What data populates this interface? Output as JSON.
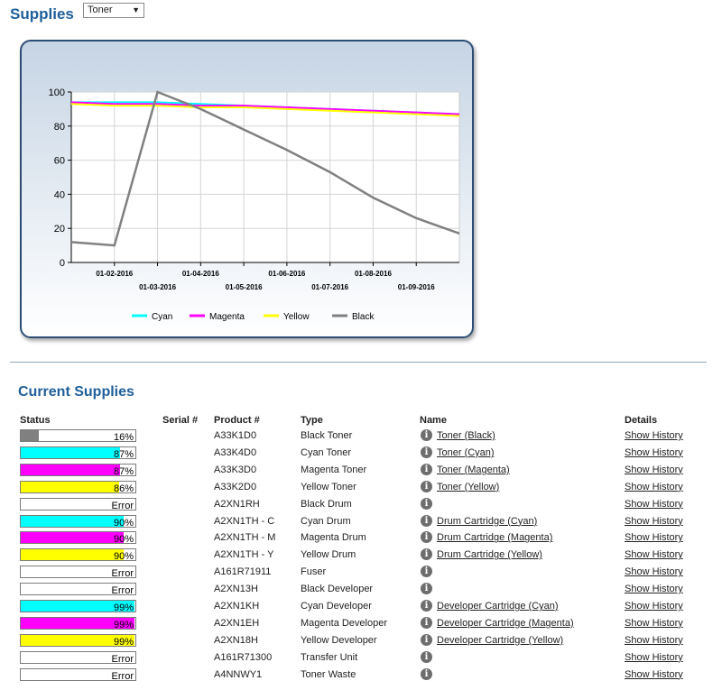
{
  "header": {
    "title": "Supplies",
    "select_value": "Toner"
  },
  "chart_data": {
    "type": "line",
    "ylim": [
      0,
      100
    ],
    "yticks": [
      0,
      20,
      40,
      60,
      80,
      100
    ],
    "x_tick_labels_row1": [
      "01-02-2016",
      "01-04-2016",
      "01-06-2016",
      "01-08-2016"
    ],
    "x_tick_labels_row2": [
      "01-03-2016",
      "01-05-2016",
      "01-07-2016",
      "01-09-2016"
    ],
    "x": [
      "01-01-2016",
      "01-02-2016",
      "01-03-2016",
      "01-04-2016",
      "01-05-2016",
      "01-06-2016",
      "01-07-2016",
      "01-08-2016",
      "01-09-2016",
      "01-10-2016"
    ],
    "series": [
      {
        "name": "Cyan",
        "color": "#00ffff",
        "values": [
          94,
          94,
          94,
          93,
          92,
          91,
          90,
          89,
          88,
          87
        ]
      },
      {
        "name": "Magenta",
        "color": "#ff00ff",
        "values": [
          94,
          93,
          93,
          92,
          92,
          91,
          90,
          89,
          88,
          87
        ]
      },
      {
        "name": "Yellow",
        "color": "#ffff00",
        "values": [
          93,
          92,
          92,
          91,
          91,
          90,
          89,
          88,
          87,
          86
        ]
      },
      {
        "name": "Black",
        "color": "#808080",
        "values": [
          12,
          10,
          100,
          90,
          78,
          66,
          53,
          38,
          26,
          17
        ]
      }
    ],
    "legend": "bottom"
  },
  "current": {
    "title": "Current Supplies",
    "headers": {
      "status": "Status",
      "serial": "Serial #",
      "product": "Product #",
      "type": "Type",
      "name": "Name",
      "details": "Details"
    },
    "rows": [
      {
        "percent": 16,
        "label": "16%",
        "color": "#808080",
        "product": "A33K1D0",
        "type": "Black Toner",
        "name": "Toner (Black)",
        "details": "Show History"
      },
      {
        "percent": 87,
        "label": "87%",
        "color": "#00ffff",
        "product": "A33K4D0",
        "type": "Cyan Toner",
        "name": "Toner (Cyan)",
        "details": "Show History"
      },
      {
        "percent": 87,
        "label": "87%",
        "color": "#ff00ff",
        "product": "A33K3D0",
        "type": "Magenta Toner",
        "name": "Toner (Magenta)",
        "details": "Show History"
      },
      {
        "percent": 86,
        "label": "86%",
        "color": "#ffff00",
        "product": "A33K2D0",
        "type": "Yellow Toner",
        "name": "Toner (Yellow)",
        "details": "Show History"
      },
      {
        "percent": 0,
        "label": "Error",
        "color": "#ffffff",
        "product": "A2XN1RH",
        "type": "Black Drum",
        "name": "",
        "details": "Show History"
      },
      {
        "percent": 90,
        "label": "90%",
        "color": "#00ffff",
        "product": "A2XN1TH - C",
        "type": "Cyan Drum",
        "name": "Drum Cartridge (Cyan)",
        "details": "Show History"
      },
      {
        "percent": 90,
        "label": "90%",
        "color": "#ff00ff",
        "product": "A2XN1TH - M",
        "type": "Magenta Drum",
        "name": "Drum Cartridge (Magenta)",
        "details": "Show History"
      },
      {
        "percent": 90,
        "label": "90%",
        "color": "#ffff00",
        "product": "A2XN1TH - Y",
        "type": "Yellow Drum",
        "name": "Drum Cartridge (Yellow)",
        "details": "Show History"
      },
      {
        "percent": 0,
        "label": "Error",
        "color": "#ffffff",
        "product": "A161R71911",
        "type": "Fuser",
        "name": "",
        "details": "Show History"
      },
      {
        "percent": 0,
        "label": "Error",
        "color": "#ffffff",
        "product": "A2XN13H",
        "type": "Black Developer",
        "name": "",
        "details": "Show History"
      },
      {
        "percent": 99,
        "label": "99%",
        "color": "#00ffff",
        "product": "A2XN1KH",
        "type": "Cyan Developer",
        "name": "Developer Cartridge (Cyan)",
        "details": "Show History"
      },
      {
        "percent": 99,
        "label": "99%",
        "color": "#ff00ff",
        "product": "A2XN1EH",
        "type": "Magenta Developer",
        "name": "Developer Cartridge (Magenta)",
        "details": "Show History"
      },
      {
        "percent": 99,
        "label": "99%",
        "color": "#ffff00",
        "product": "A2XN18H",
        "type": "Yellow Developer",
        "name": "Developer Cartridge (Yellow)",
        "details": "Show History"
      },
      {
        "percent": 0,
        "label": "Error",
        "color": "#ffffff",
        "product": "A161R71300",
        "type": "Transfer Unit",
        "name": "",
        "details": "Show History"
      },
      {
        "percent": 0,
        "label": "Error",
        "color": "#ffffff",
        "product": "A4NNWY1",
        "type": "Toner Waste",
        "name": "",
        "details": "Show History"
      }
    ]
  }
}
